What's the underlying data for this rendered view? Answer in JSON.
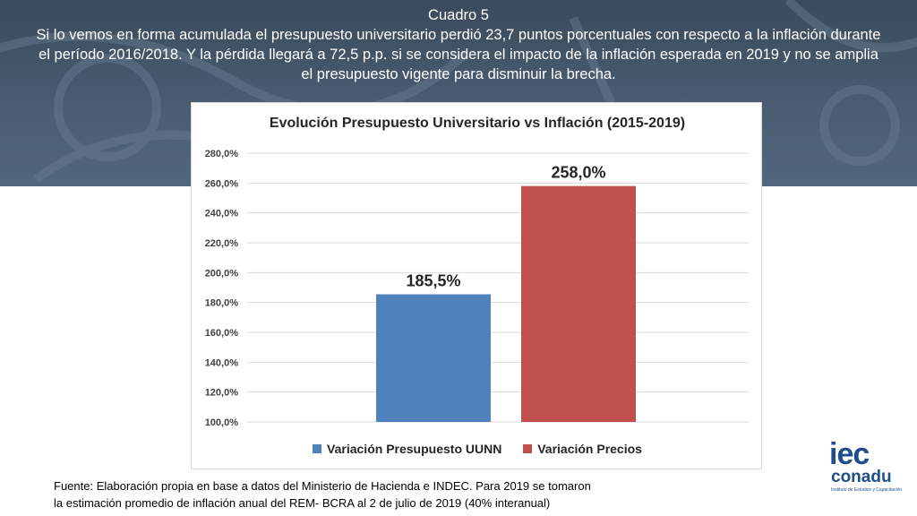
{
  "header": {
    "title": "Cuadro 5",
    "description": "Si lo vemos en forma acumulada el presupuesto universitario perdió 23,7 puntos porcentuales con respecto a la inflación durante el período 2016/2018. Y la pérdida llegará a 72,5 p.p. si se considera el impacto de la inflación esperada en 2019 y no se amplia el presupuesto vigente para disminuir la brecha."
  },
  "chart_data": {
    "type": "bar",
    "title": "Evolución Presupuesto Universitario vs Inflación (2015-2019)",
    "categories": [
      ""
    ],
    "series": [
      {
        "name": "Variación Presupuesto UUNN",
        "values": [
          185.5
        ],
        "label": "185,5%",
        "color": "#4f81bd"
      },
      {
        "name": "Variación Precios",
        "values": [
          258.0
        ],
        "label": "258,0%",
        "color": "#c0504d"
      }
    ],
    "ylim": [
      100,
      280
    ],
    "yticks": [
      100,
      120,
      140,
      160,
      180,
      200,
      220,
      240,
      260,
      280
    ],
    "ytick_labels": [
      "100,0%",
      "120,0%",
      "140,0%",
      "160,0%",
      "180,0%",
      "200,0%",
      "220,0%",
      "240,0%",
      "260,0%",
      "280,0%"
    ],
    "grid": true,
    "legend": "bottom"
  },
  "footer": {
    "source_line1": "Fuente: Elaboración propia en base a datos del Ministerio de Hacienda e INDEC. Para 2019 se tomaron",
    "source_line2": "la estimación promedio de inflación anual  del REM- BCRA al 2 de julio  de 2019 (40% interanual)"
  },
  "logo": {
    "main": "iec",
    "sub": "conadu",
    "tagline": "Instituto de Estudios y Capacitación"
  }
}
